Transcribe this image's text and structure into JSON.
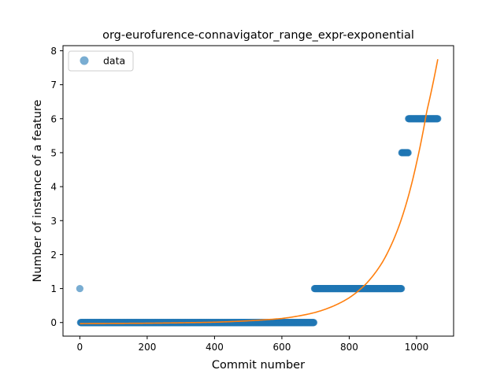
{
  "chart_data": {
    "type": "scatter",
    "title": "org-eurofurence-connavigator_range_expr-exponential",
    "xlabel": "Commit number",
    "ylabel": "Number of instance of a feature",
    "xlim": [
      -50,
      1110
    ],
    "ylim": [
      -0.4,
      8.15
    ],
    "xticks": [
      0,
      200,
      400,
      600,
      800,
      1000
    ],
    "yticks": [
      0,
      1,
      2,
      3,
      4,
      5,
      6,
      7,
      8
    ],
    "xtick_labels": [
      "0",
      "200",
      "400",
      "600",
      "800",
      "1000"
    ],
    "ytick_labels": [
      "0",
      "1",
      "2",
      "3",
      "4",
      "5",
      "6",
      "7",
      "8"
    ],
    "grid": false,
    "legend": {
      "position": "top-left",
      "entries": [
        "data"
      ]
    },
    "series": [
      {
        "name": "data",
        "kind": "scatter",
        "color": "#1f77b4",
        "runs": [
          {
            "x_start": 0,
            "x_end": 0,
            "y": 1
          },
          {
            "x_start": 2,
            "x_end": 695,
            "y": 0
          },
          {
            "x_start": 697,
            "x_end": 955,
            "y": 1
          },
          {
            "x_start": 956,
            "x_end": 975,
            "y": 5
          },
          {
            "x_start": 976,
            "x_end": 1063,
            "y": 6
          }
        ]
      },
      {
        "kind": "line",
        "color": "#ff7f0e",
        "x_range": [
          0,
          1063
        ],
        "points": [
          [
            0,
            -0.03
          ],
          [
            200,
            -0.02
          ],
          [
            400,
            0.01
          ],
          [
            600,
            0.12
          ],
          [
            700,
            0.3
          ],
          [
            800,
            0.73
          ],
          [
            850,
            1.14
          ],
          [
            900,
            1.8
          ],
          [
            950,
            2.9
          ],
          [
            1000,
            4.7
          ],
          [
            1030,
            6.2
          ],
          [
            1063,
            7.75
          ]
        ]
      }
    ]
  }
}
